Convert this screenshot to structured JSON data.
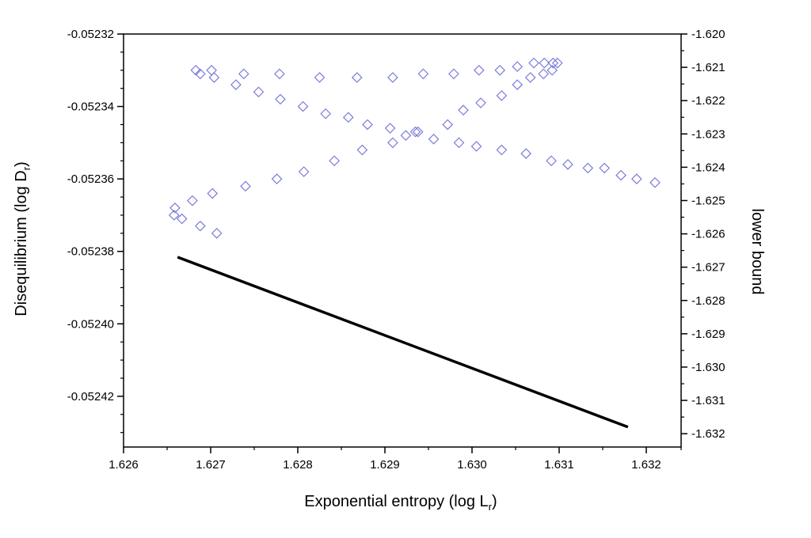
{
  "chart_data": {
    "type": "scatter",
    "title": "",
    "xlabel": {
      "main": "Exponential entropy (log L",
      "sub": "r",
      "close": ")"
    },
    "ylabel": {
      "main": "Disequilibrium (log D",
      "sub": "r",
      "close": ")"
    },
    "y2label": "lower bound",
    "xlim": [
      1.626,
      1.6324
    ],
    "ylim": [
      -0.052434,
      -0.05232
    ],
    "y2lim": [
      -1.6324,
      -1.62
    ],
    "xticks": [
      "1.626",
      "1.627",
      "1.628",
      "1.629",
      "1.630",
      "1.631",
      "1.632"
    ],
    "yticks": [
      "-0.05232",
      "-0.05234",
      "-0.05236",
      "-0.05238",
      "-0.05240",
      "-0.05242"
    ],
    "y2ticks": [
      "-1.620",
      "-1.621",
      "-1.622",
      "-1.623",
      "-1.624",
      "-1.625",
      "-1.626",
      "-1.627",
      "-1.628",
      "-1.629",
      "-1.630",
      "-1.631",
      "-1.632"
    ],
    "grid": false,
    "colors": {
      "scatter": "#7b7bdc",
      "line": "#000000"
    },
    "series": [
      {
        "type": "scatter",
        "axis": "left",
        "marker": "diamond",
        "points": [
          [
            1.62683,
            -0.05233
          ],
          [
            1.62701,
            -0.05233
          ],
          [
            1.62738,
            -0.052331
          ],
          [
            1.62779,
            -0.052331
          ],
          [
            1.62825,
            -0.052332
          ],
          [
            1.62868,
            -0.052332
          ],
          [
            1.62909,
            -0.052332
          ],
          [
            1.62944,
            -0.052331
          ],
          [
            1.62979,
            -0.052331
          ],
          [
            1.63008,
            -0.05233
          ],
          [
            1.63032,
            -0.05233
          ],
          [
            1.63052,
            -0.052329
          ],
          [
            1.63071,
            -0.052328
          ],
          [
            1.63083,
            -0.052328
          ],
          [
            1.63093,
            -0.052328
          ],
          [
            1.63098,
            -0.052328
          ],
          [
            1.62688,
            -0.052331
          ],
          [
            1.62704,
            -0.052332
          ],
          [
            1.62729,
            -0.052334
          ],
          [
            1.62755,
            -0.052336
          ],
          [
            1.6278,
            -0.052338
          ],
          [
            1.62806,
            -0.05234
          ],
          [
            1.62832,
            -0.052342
          ],
          [
            1.62858,
            -0.052343
          ],
          [
            1.6288,
            -0.052345
          ],
          [
            1.62906,
            -0.052346
          ],
          [
            1.62935,
            -0.052347
          ],
          [
            1.62956,
            -0.052349
          ],
          [
            1.62985,
            -0.05235
          ],
          [
            1.63005,
            -0.052351
          ],
          [
            1.63034,
            -0.052352
          ],
          [
            1.63062,
            -0.052353
          ],
          [
            1.63091,
            -0.052355
          ],
          [
            1.6311,
            -0.052356
          ],
          [
            1.63133,
            -0.052357
          ],
          [
            1.63152,
            -0.052357
          ],
          [
            1.63171,
            -0.052359
          ],
          [
            1.63189,
            -0.05236
          ],
          [
            1.6321,
            -0.052361
          ],
          [
            1.62658,
            -0.05237
          ],
          [
            1.62667,
            -0.052371
          ],
          [
            1.62688,
            -0.052373
          ],
          [
            1.62707,
            -0.052375
          ],
          [
            1.62659,
            -0.052368
          ],
          [
            1.62679,
            -0.052366
          ],
          [
            1.62702,
            -0.052364
          ],
          [
            1.6274,
            -0.052362
          ],
          [
            1.62776,
            -0.05236
          ],
          [
            1.62807,
            -0.052358
          ],
          [
            1.62842,
            -0.052355
          ],
          [
            1.62874,
            -0.052352
          ],
          [
            1.62909,
            -0.05235
          ],
          [
            1.62924,
            -0.052348
          ],
          [
            1.62938,
            -0.052347
          ],
          [
            1.62972,
            -0.052345
          ],
          [
            1.6299,
            -0.052341
          ],
          [
            1.6301,
            -0.052339
          ],
          [
            1.63034,
            -0.052337
          ],
          [
            1.63052,
            -0.052334
          ],
          [
            1.63067,
            -0.052332
          ],
          [
            1.63082,
            -0.052331
          ],
          [
            1.63092,
            -0.05233
          ]
        ]
      },
      {
        "type": "line",
        "axis": "right",
        "points": [
          [
            1.62662,
            -1.6267
          ],
          [
            1.63179,
            -1.6318
          ]
        ]
      }
    ]
  }
}
